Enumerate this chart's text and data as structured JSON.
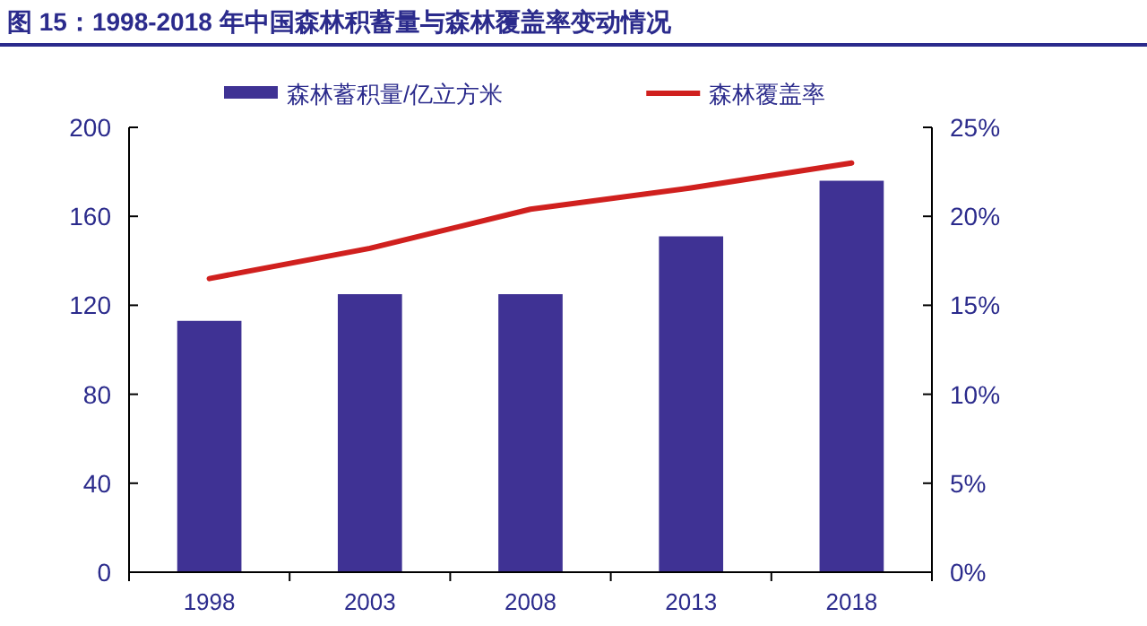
{
  "chart_data": {
    "type": "bar",
    "title": "图 15：1998-2018 年中国森林积蓄量与森林覆盖率变动情况",
    "categories": [
      "1998",
      "2003",
      "2008",
      "2013",
      "2018"
    ],
    "series": [
      {
        "name": "森林蓄积量/亿立方米",
        "color": "#3f3294",
        "values": [
          113,
          125,
          125,
          151,
          176
        ]
      },
      {
        "name": "森林覆盖率",
        "type": "line",
        "axis": "y2",
        "color": "#d0201e",
        "values": [
          16.5,
          18.2,
          20.4,
          21.6,
          23.0
        ]
      }
    ],
    "ylim": [
      0,
      200
    ],
    "yticks": [
      0,
      40,
      80,
      120,
      160,
      200
    ],
    "y2lim": [
      0,
      25
    ],
    "y2ticks": [
      {
        "value": 0,
        "label": "0%"
      },
      {
        "value": 5,
        "label": "5%"
      },
      {
        "value": 10,
        "label": "10%"
      },
      {
        "value": 15,
        "label": "15%"
      },
      {
        "value": 20,
        "label": "20%"
      },
      {
        "value": 25,
        "label": "25%"
      }
    ],
    "grid": false,
    "legend": "top",
    "marker": "none"
  }
}
